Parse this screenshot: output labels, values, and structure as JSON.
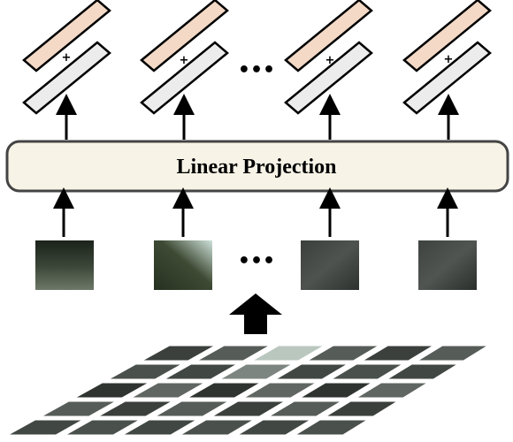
{
  "projection": {
    "label": "Linear Projection"
  },
  "ellipsis": "•••",
  "plus_symbol": "+",
  "colors": {
    "position_embedding": "#f3d9c6",
    "patch_embedding": "#ececec",
    "projection_fill": "#f7f3e6",
    "stroke": "#000000"
  },
  "tokens": [
    {
      "id": "token-1",
      "patch_colors": [
        "#1b231a",
        "#3a4436",
        "#6d7868"
      ]
    },
    {
      "id": "token-2",
      "patch_colors": [
        "#cfe2da",
        "#3e4a34",
        "#263020"
      ]
    },
    {
      "id": "token-3",
      "patch_colors": [
        "#3c403c",
        "#4e534f",
        "#2e322f"
      ]
    },
    {
      "id": "token-4",
      "patch_colors": [
        "#3e433f",
        "#505551",
        "#2b2f2c"
      ]
    }
  ],
  "grid": {
    "rows": 5,
    "cols": 6
  }
}
